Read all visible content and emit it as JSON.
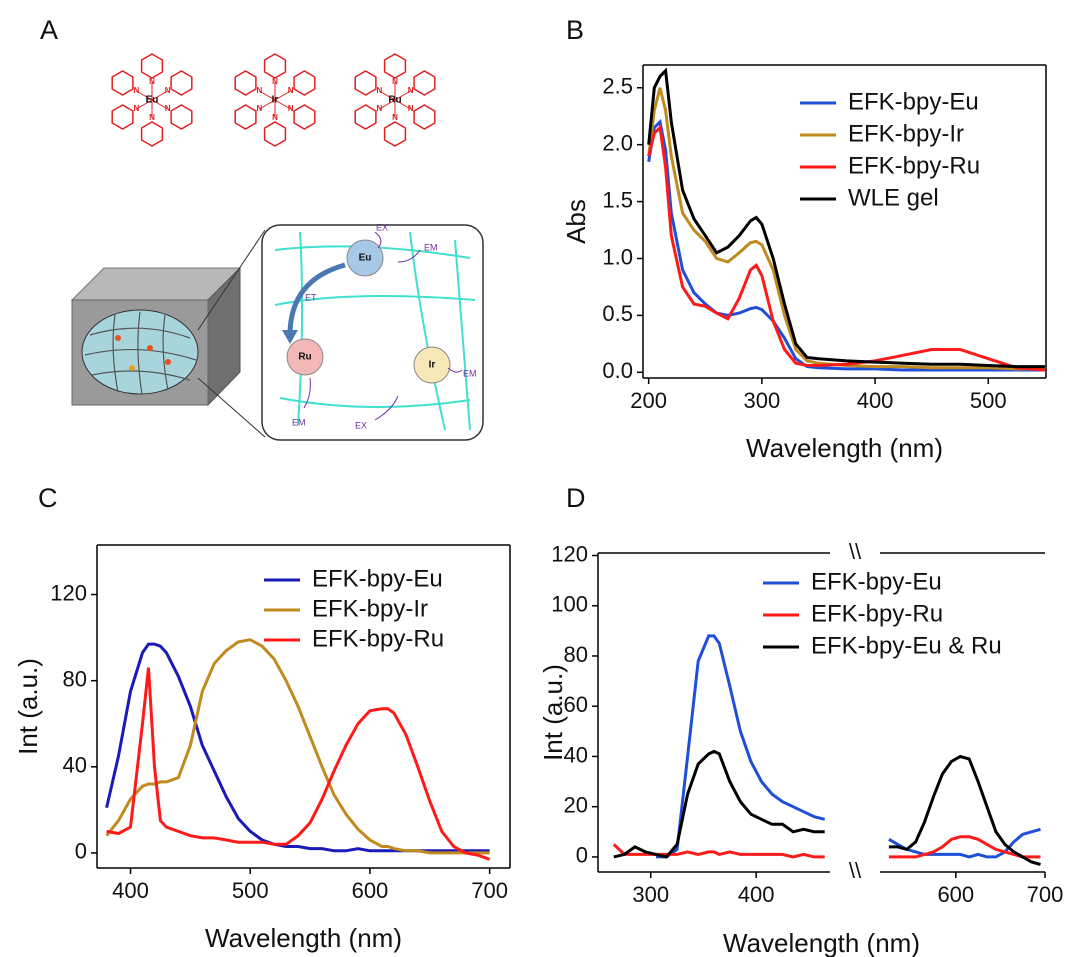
{
  "diagram": {
    "panel_label": "A",
    "metals": [
      "Eu",
      "Ir",
      "Ru"
    ],
    "atom_label": "N",
    "inset_labels": {
      "excitation": "EX",
      "emission": "EM",
      "energy_transfer": "ET"
    }
  },
  "chart_data": [
    {
      "type": "line",
      "panel_label": "B",
      "x_label": "Wavelength (nm)",
      "y_label": "Abs",
      "x": [
        200,
        205,
        210,
        215,
        220,
        230,
        240,
        250,
        260,
        270,
        280,
        290,
        295,
        300,
        310,
        320,
        330,
        340,
        350,
        375,
        400,
        425,
        450,
        475,
        500,
        525,
        550
      ],
      "xlim": [
        195,
        551
      ],
      "ylim": [
        -0.05,
        2.7
      ],
      "xticks": [
        200,
        300,
        400,
        500
      ],
      "yticks": [
        {
          "value": 0,
          "label": "0.0"
        },
        0.5,
        {
          "value": 1,
          "label": "1.0"
        },
        1.5,
        {
          "value": 2,
          "label": "2.0"
        },
        2.5
      ],
      "legend": "upper right",
      "series": [
        {
          "name": "EFK-bpy-Eu",
          "color": "#1f4fd8",
          "values": [
            1.85,
            2.15,
            2.2,
            1.95,
            1.4,
            0.9,
            0.7,
            0.6,
            0.52,
            0.5,
            0.52,
            0.56,
            0.57,
            0.55,
            0.45,
            0.3,
            0.12,
            0.05,
            0.04,
            0.03,
            0.03,
            0.02,
            0.02,
            0.02,
            0.02,
            0.02,
            0.02
          ]
        },
        {
          "name": "EFK-bpy-Ir",
          "color": "#c08a1e",
          "values": [
            1.9,
            2.3,
            2.5,
            2.3,
            1.9,
            1.4,
            1.25,
            1.15,
            1.0,
            0.97,
            1.05,
            1.14,
            1.15,
            1.12,
            0.9,
            0.5,
            0.2,
            0.1,
            0.08,
            0.06,
            0.05,
            0.05,
            0.04,
            0.04,
            0.04,
            0.03,
            0.03
          ]
        },
        {
          "name": "EFK-bpy-Ru",
          "color": "#ff1a1a",
          "values": [
            1.9,
            2.1,
            2.15,
            1.8,
            1.2,
            0.75,
            0.6,
            0.58,
            0.52,
            0.47,
            0.65,
            0.9,
            0.94,
            0.85,
            0.45,
            0.2,
            0.08,
            0.06,
            0.06,
            0.07,
            0.1,
            0.15,
            0.2,
            0.2,
            0.12,
            0.04,
            0.02
          ]
        },
        {
          "name": "WLE gel",
          "color": "#000000",
          "values": [
            2.0,
            2.5,
            2.6,
            2.65,
            2.2,
            1.6,
            1.35,
            1.2,
            1.05,
            1.1,
            1.2,
            1.33,
            1.36,
            1.3,
            1.0,
            0.6,
            0.25,
            0.13,
            0.12,
            0.1,
            0.09,
            0.08,
            0.07,
            0.07,
            0.06,
            0.05,
            0.05
          ]
        }
      ]
    },
    {
      "type": "line",
      "panel_label": "C",
      "x_label": "Wavelength (nm)",
      "y_label": "Int (a.u.)",
      "x": [
        380,
        390,
        400,
        410,
        415,
        420,
        425,
        430,
        440,
        450,
        460,
        470,
        480,
        490,
        500,
        510,
        520,
        530,
        540,
        550,
        560,
        570,
        580,
        590,
        600,
        610,
        615,
        620,
        630,
        640,
        650,
        660,
        670,
        680,
        690,
        700
      ],
      "xlim": [
        372,
        717
      ],
      "ylim": [
        -7,
        143
      ],
      "xticks": [
        400,
        500,
        600,
        700
      ],
      "yticks": [
        0,
        40,
        80,
        120
      ],
      "legend": "upper right",
      "series": [
        {
          "name": "EFK-bpy-Eu",
          "color": "#1a1ab8",
          "values": [
            21,
            45,
            75,
            93,
            97,
            97,
            96,
            93,
            82,
            68,
            50,
            38,
            26,
            16,
            10,
            6,
            4,
            3,
            3,
            2,
            2,
            1,
            1,
            2,
            1,
            1,
            1,
            1,
            1,
            1,
            1,
            1,
            1,
            1,
            1,
            1
          ]
        },
        {
          "name": "EFK-bpy-Ir",
          "color": "#c08a1e",
          "values": [
            8,
            15,
            25,
            31,
            32,
            32,
            33,
            33,
            35,
            50,
            75,
            88,
            94,
            98,
            99,
            96,
            90,
            80,
            68,
            54,
            40,
            27,
            18,
            11,
            6,
            3,
            3,
            2,
            1,
            1,
            0,
            0,
            0,
            0,
            0,
            0
          ]
        },
        {
          "name": "EFK-bpy-Ru",
          "color": "#ff1a1a",
          "values": [
            10,
            9,
            12,
            60,
            86,
            40,
            15,
            12,
            10,
            8,
            7,
            7,
            6,
            5,
            5,
            5,
            4,
            4,
            8,
            14,
            25,
            38,
            50,
            60,
            66,
            67,
            67,
            65,
            55,
            40,
            24,
            10,
            3,
            0,
            -1,
            -3
          ]
        }
      ]
    },
    {
      "type": "line",
      "panel_label": "D",
      "x_label": "Wavelength (nm)",
      "y_label": "Int (a.u.)",
      "x": [
        265,
        275,
        285,
        295,
        305,
        315,
        325,
        335,
        345,
        355,
        360,
        365,
        375,
        385,
        395,
        405,
        415,
        425,
        435,
        445,
        455,
        465,
        490,
        525,
        535,
        545,
        555,
        565,
        575,
        585,
        595,
        605,
        615,
        625,
        635,
        645,
        655,
        665,
        675,
        685,
        695
      ],
      "xlim": [
        250,
        700
      ],
      "xbreak": [
        470,
        515
      ],
      "break_mark": "\\\\",
      "ylim": [
        -6,
        121
      ],
      "xticks": [
        300,
        400,
        600,
        700
      ],
      "yticks": [
        0,
        20,
        40,
        60,
        80,
        100,
        120
      ],
      "legend": "upper right",
      "series": [
        {
          "name": "EFK-bpy-Eu",
          "color": "#1f4fd8",
          "values": [
            null,
            null,
            null,
            null,
            0,
            0,
            3,
            40,
            78,
            88,
            88,
            85,
            68,
            50,
            38,
            30,
            25,
            22,
            20,
            18,
            16,
            15,
            null,
            7,
            5,
            3,
            2,
            1,
            1,
            1,
            1,
            1,
            0,
            1,
            0,
            0,
            2,
            6,
            9,
            10,
            11
          ]
        },
        {
          "name": "EFK-bpy-Ru",
          "color": "#ff1a1a",
          "values": [
            5,
            1,
            1,
            1,
            1,
            1,
            1,
            2,
            1,
            2,
            2,
            1,
            2,
            1,
            1,
            1,
            1,
            1,
            0,
            1,
            0,
            0,
            null,
            0,
            0,
            0,
            0,
            1,
            2,
            4,
            7,
            8,
            8,
            7,
            5,
            3,
            2,
            1,
            0,
            0,
            0
          ]
        },
        {
          "name": "EFK-bpy-Eu & Ru",
          "color": "#000000",
          "values": [
            0,
            1,
            4,
            2,
            1,
            0,
            5,
            25,
            37,
            41,
            42,
            41,
            30,
            22,
            17,
            15,
            13,
            13,
            10,
            11,
            10,
            10,
            null,
            4,
            4,
            3,
            6,
            14,
            24,
            33,
            38,
            40,
            39,
            30,
            20,
            10,
            5,
            2,
            0,
            -2,
            -3
          ]
        }
      ]
    }
  ]
}
